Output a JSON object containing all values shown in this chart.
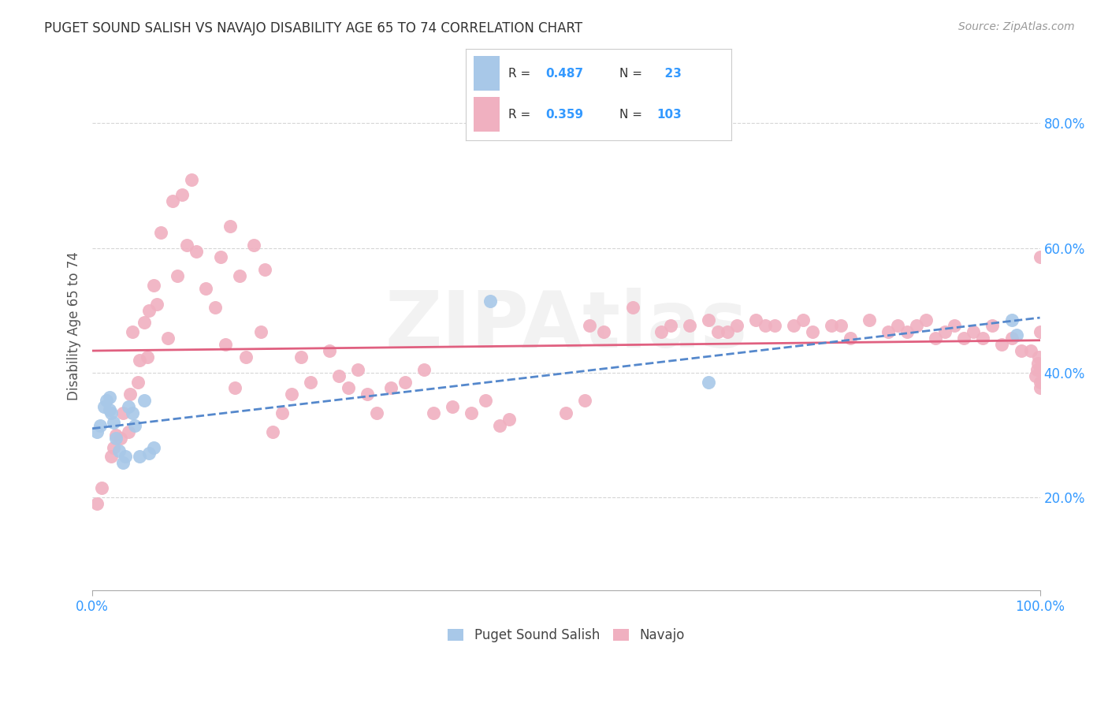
{
  "title": "PUGET SOUND SALISH VS NAVAJO DISABILITY AGE 65 TO 74 CORRELATION CHART",
  "source": "Source: ZipAtlas.com",
  "ylabel": "Disability Age 65 to 74",
  "watermark": "ZIPAtlas",
  "r_salish": 0.487,
  "n_salish": 23,
  "r_navajo": 0.359,
  "n_navajo": 103,
  "salish_color": "#a8c8e8",
  "navajo_color": "#f0b0c0",
  "salish_line_color": "#5588cc",
  "navajo_line_color": "#e06080",
  "axis_color": "#3399ff",
  "legend_n_color": "#3399ff",
  "background_color": "#ffffff",
  "grid_color": "#cccccc",
  "xmin": 0.0,
  "xmax": 1.0,
  "ymin": 0.05,
  "ymax": 0.9,
  "salish_x": [
    0.005,
    0.008,
    0.012,
    0.015,
    0.018,
    0.018,
    0.02,
    0.022,
    0.025,
    0.028,
    0.032,
    0.035,
    0.038,
    0.042,
    0.045,
    0.05,
    0.055,
    0.06,
    0.065,
    0.42,
    0.65,
    0.97,
    0.975
  ],
  "salish_y": [
    0.305,
    0.315,
    0.345,
    0.355,
    0.36,
    0.34,
    0.335,
    0.32,
    0.295,
    0.275,
    0.255,
    0.265,
    0.345,
    0.335,
    0.315,
    0.265,
    0.355,
    0.27,
    0.28,
    0.515,
    0.385,
    0.485,
    0.46
  ],
  "navajo_x": [
    0.005,
    0.01,
    0.02,
    0.022,
    0.025,
    0.03,
    0.032,
    0.038,
    0.04,
    0.042,
    0.048,
    0.05,
    0.055,
    0.058,
    0.06,
    0.065,
    0.068,
    0.072,
    0.08,
    0.085,
    0.09,
    0.095,
    0.1,
    0.105,
    0.11,
    0.12,
    0.13,
    0.135,
    0.14,
    0.145,
    0.15,
    0.155,
    0.162,
    0.17,
    0.178,
    0.182,
    0.19,
    0.2,
    0.21,
    0.22,
    0.23,
    0.25,
    0.26,
    0.27,
    0.28,
    0.29,
    0.3,
    0.315,
    0.33,
    0.35,
    0.36,
    0.38,
    0.4,
    0.415,
    0.43,
    0.44,
    0.5,
    0.52,
    0.525,
    0.54,
    0.57,
    0.6,
    0.61,
    0.63,
    0.65,
    0.66,
    0.67,
    0.68,
    0.7,
    0.71,
    0.72,
    0.74,
    0.75,
    0.76,
    0.78,
    0.79,
    0.8,
    0.82,
    0.84,
    0.85,
    0.86,
    0.87,
    0.88,
    0.89,
    0.9,
    0.91,
    0.92,
    0.93,
    0.94,
    0.95,
    0.96,
    0.97,
    0.98,
    0.99,
    0.995,
    0.997,
    0.998,
    0.999,
    1.0,
    1.0,
    1.0,
    1.0,
    1.0
  ],
  "navajo_y": [
    0.19,
    0.215,
    0.265,
    0.28,
    0.3,
    0.295,
    0.335,
    0.305,
    0.365,
    0.465,
    0.385,
    0.42,
    0.48,
    0.425,
    0.5,
    0.54,
    0.51,
    0.625,
    0.455,
    0.675,
    0.555,
    0.685,
    0.605,
    0.71,
    0.595,
    0.535,
    0.505,
    0.585,
    0.445,
    0.635,
    0.375,
    0.555,
    0.425,
    0.605,
    0.465,
    0.565,
    0.305,
    0.335,
    0.365,
    0.425,
    0.385,
    0.435,
    0.395,
    0.375,
    0.405,
    0.365,
    0.335,
    0.375,
    0.385,
    0.405,
    0.335,
    0.345,
    0.335,
    0.355,
    0.315,
    0.325,
    0.335,
    0.355,
    0.475,
    0.465,
    0.505,
    0.465,
    0.475,
    0.475,
    0.485,
    0.465,
    0.465,
    0.475,
    0.485,
    0.475,
    0.475,
    0.475,
    0.485,
    0.465,
    0.475,
    0.475,
    0.455,
    0.485,
    0.465,
    0.475,
    0.465,
    0.475,
    0.485,
    0.455,
    0.465,
    0.475,
    0.455,
    0.465,
    0.455,
    0.475,
    0.445,
    0.455,
    0.435,
    0.435,
    0.395,
    0.405,
    0.415,
    0.425,
    0.405,
    0.385,
    0.375,
    0.465,
    0.585
  ]
}
